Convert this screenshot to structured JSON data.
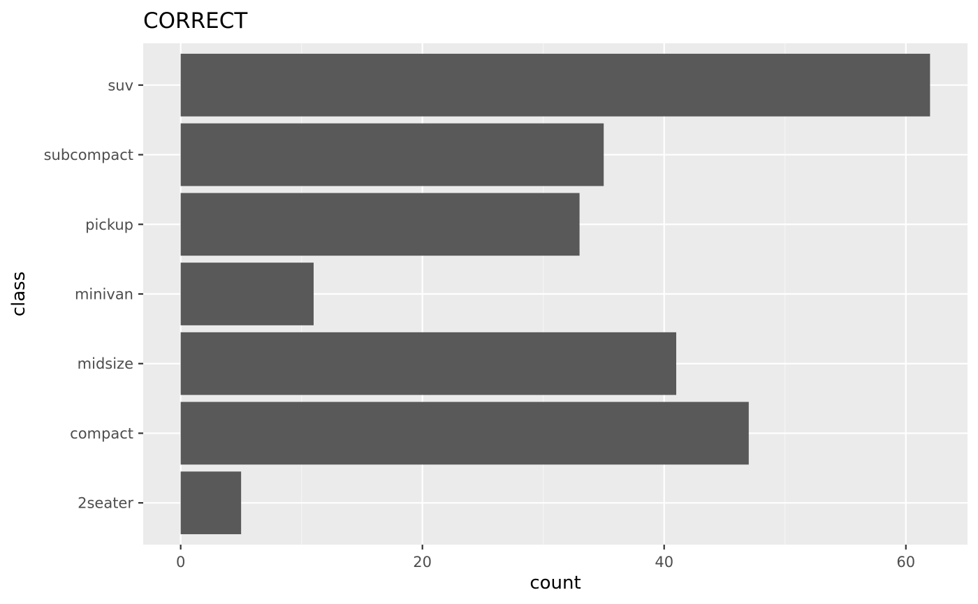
{
  "chart_data": {
    "type": "bar",
    "orientation": "horizontal",
    "title": "CORRECT",
    "xlabel": "count",
    "ylabel": "class",
    "categories": [
      "2seater",
      "compact",
      "midsize",
      "minivan",
      "pickup",
      "subcompact",
      "suv"
    ],
    "values": [
      5,
      47,
      41,
      11,
      33,
      35,
      62
    ],
    "xlim": [
      -3.1,
      65.1
    ],
    "xticks": [
      0,
      20,
      40,
      60
    ],
    "grid": true,
    "legend": "none",
    "colors": {
      "bar": "#595959",
      "panel": "#ebebeb",
      "grid_major": "#ffffff",
      "grid_minor": "#f5f5f5",
      "tick_label": "#4d4d4d",
      "text": "#000000"
    }
  }
}
